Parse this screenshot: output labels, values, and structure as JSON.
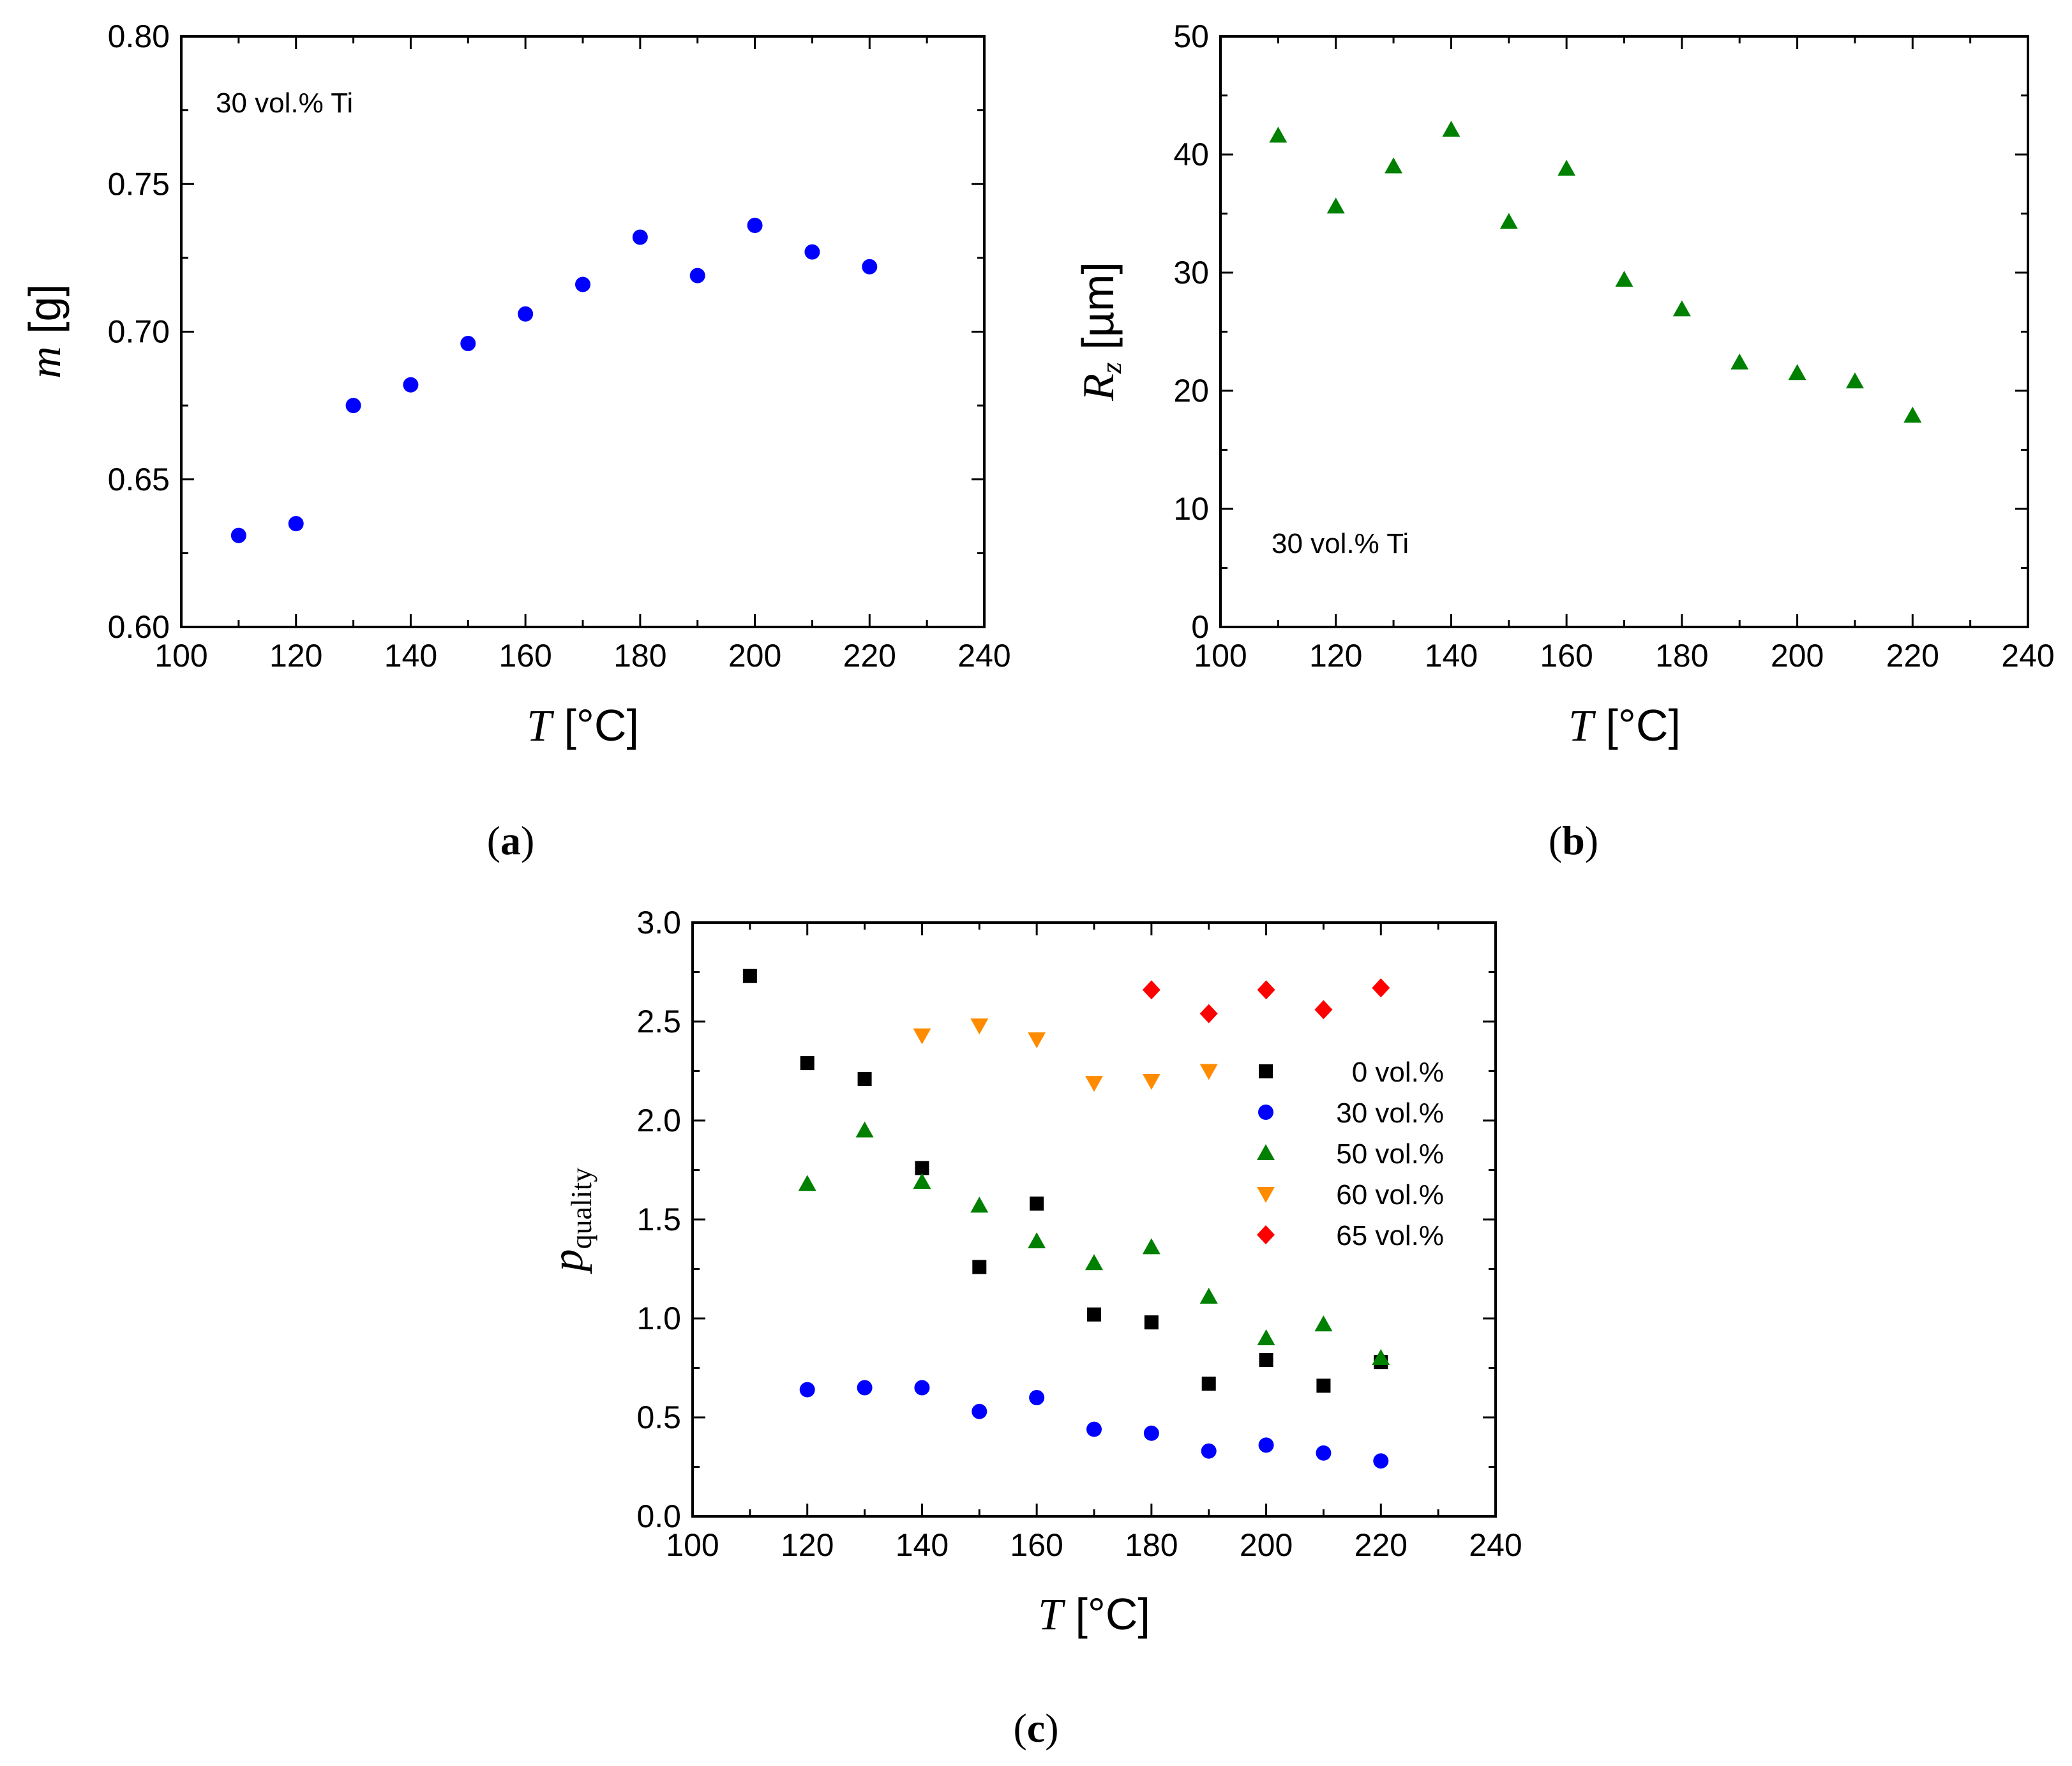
{
  "colors": {
    "blue": "#0000ff",
    "green": "#008000",
    "orange": "#ff8c00",
    "red": "#ff0000",
    "black": "#000000"
  },
  "chart_data": [
    {
      "id": "a",
      "type": "scatter",
      "panel_label": "a",
      "annotation": "30 vol.% Ti",
      "ylabel": "m [g]",
      "xlabel": "T [°C]",
      "xlim": [
        100,
        240
      ],
      "ylim": [
        0.6,
        0.8
      ],
      "xticks": [
        100,
        120,
        140,
        160,
        180,
        200,
        220,
        240
      ],
      "yticks": [
        0.6,
        0.65,
        0.7,
        0.75,
        0.8
      ],
      "ytick_labels": [
        "0.60",
        "0.65",
        "0.70",
        "0.75",
        "0.80"
      ],
      "series": [
        {
          "name": "30 vol.% Ti",
          "marker": "circle",
          "color": "#0000ff",
          "x": [
            110,
            120,
            130,
            140,
            150,
            160,
            170,
            180,
            190,
            200,
            210,
            220
          ],
          "y": [
            0.631,
            0.635,
            0.675,
            0.682,
            0.696,
            0.706,
            0.716,
            0.732,
            0.719,
            0.736,
            0.727,
            0.722
          ]
        }
      ]
    },
    {
      "id": "b",
      "type": "scatter",
      "panel_label": "b",
      "annotation": "30 vol.% Ti",
      "ylabel": "Rz [µm]",
      "xlabel": "T [°C]",
      "xlim": [
        100,
        240
      ],
      "ylim": [
        0,
        50
      ],
      "xticks": [
        100,
        120,
        140,
        160,
        180,
        200,
        220,
        240
      ],
      "yticks": [
        0,
        10,
        20,
        30,
        40,
        50
      ],
      "ytick_labels": [
        "0",
        "10",
        "20",
        "30",
        "40",
        "50"
      ],
      "series": [
        {
          "name": "30 vol.% Ti",
          "marker": "triangle-up",
          "color": "#008000",
          "x": [
            110,
            120,
            130,
            140,
            150,
            160,
            170,
            180,
            190,
            200,
            210,
            220
          ],
          "y": [
            41.6,
            35.6,
            39.0,
            42.1,
            34.3,
            38.8,
            29.4,
            26.9,
            22.4,
            21.5,
            20.8,
            17.9
          ]
        }
      ]
    },
    {
      "id": "c",
      "type": "scatter",
      "panel_label": "c",
      "ylabel": "pquality",
      "xlabel": "T [°C]",
      "xlim": [
        100,
        240
      ],
      "ylim": [
        0.0,
        3.0
      ],
      "xticks": [
        100,
        120,
        140,
        160,
        180,
        200,
        220,
        240
      ],
      "yticks": [
        0.0,
        0.5,
        1.0,
        1.5,
        2.0,
        2.5,
        3.0
      ],
      "ytick_labels": [
        "0.0",
        "0.5",
        "1.0",
        "1.5",
        "2.0",
        "2.5",
        "3.0"
      ],
      "legend_position": "right-upper",
      "series": [
        {
          "name": "0 vol.%",
          "marker": "square",
          "color": "#000000",
          "x": [
            110,
            120,
            130,
            140,
            150,
            160,
            170,
            180,
            190,
            200,
            210,
            220
          ],
          "y": [
            2.73,
            2.29,
            2.21,
            1.76,
            1.26,
            1.58,
            1.02,
            0.98,
            0.67,
            0.79,
            0.66,
            0.78
          ]
        },
        {
          "name": "30 vol.%",
          "marker": "circle",
          "color": "#0000ff",
          "x": [
            120,
            130,
            140,
            150,
            160,
            170,
            180,
            190,
            200,
            210,
            220
          ],
          "y": [
            0.64,
            0.65,
            0.65,
            0.53,
            0.6,
            0.44,
            0.42,
            0.33,
            0.36,
            0.32,
            0.28
          ]
        },
        {
          "name": "50 vol.%",
          "marker": "triangle-up",
          "color": "#008000",
          "x": [
            120,
            130,
            140,
            150,
            160,
            170,
            180,
            190,
            200,
            210,
            220
          ],
          "y": [
            1.68,
            1.95,
            1.69,
            1.57,
            1.39,
            1.28,
            1.36,
            1.11,
            0.9,
            0.97,
            0.8
          ]
        },
        {
          "name": "60 vol.%",
          "marker": "triangle-down",
          "color": "#ff8c00",
          "x": [
            140,
            150,
            160,
            170,
            180,
            190
          ],
          "y": [
            2.43,
            2.48,
            2.41,
            2.19,
            2.2,
            2.25
          ]
        },
        {
          "name": "65 vol.%",
          "marker": "diamond",
          "color": "#ff0000",
          "x": [
            180,
            190,
            200,
            210,
            220
          ],
          "y": [
            2.66,
            2.54,
            2.66,
            2.56,
            2.67
          ]
        }
      ]
    }
  ]
}
